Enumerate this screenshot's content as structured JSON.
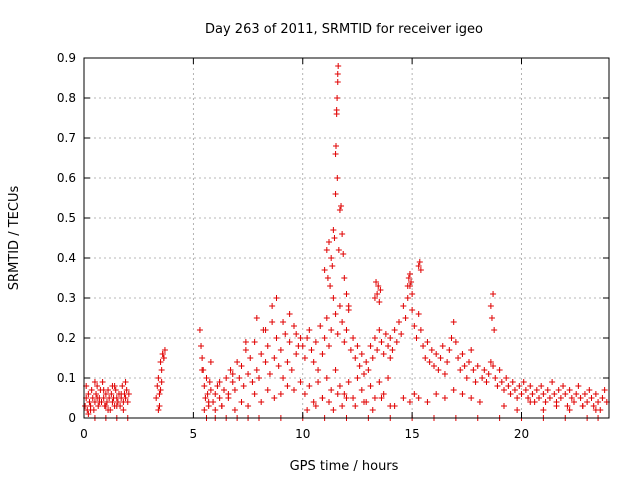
{
  "chart_data": {
    "type": "scatter",
    "title": "Day 263 of 2011, SRMTID for receiver igeo",
    "xlabel": "GPS time / hours",
    "ylabel": "SRMTID / TECUs",
    "xlim": [
      0,
      24
    ],
    "ylim": [
      0,
      0.9
    ],
    "xticks": [
      0,
      5,
      10,
      15,
      20
    ],
    "xtick_labels": [
      "0",
      "5",
      "10",
      "15",
      "20"
    ],
    "yticks": [
      0,
      0.1,
      0.2,
      0.3,
      0.4,
      0.5,
      0.6,
      0.7,
      0.8,
      0.9
    ],
    "ytick_labels": [
      "0",
      "0.1",
      "0.2",
      "0.3",
      "0.4",
      "0.5",
      "0.6",
      "0.7",
      "0.8",
      "0.9"
    ],
    "grid": true,
    "marker": "plus",
    "color": "#e00000",
    "series": [
      {
        "name": "SRMTID",
        "x": [
          0.05,
          0.1,
          0.15,
          0.2,
          0.25,
          0.3,
          0.35,
          0.4,
          0.45,
          0.5,
          0.55,
          0.6,
          0.65,
          0.7,
          0.75,
          0.8,
          0.85,
          0.9,
          0.95,
          1.0,
          1.05,
          1.1,
          1.15,
          1.2,
          1.25,
          1.3,
          1.35,
          1.4,
          1.45,
          1.5,
          1.55,
          1.6,
          1.65,
          1.7,
          1.75,
          1.8,
          1.85,
          1.9,
          1.95,
          2.0,
          2.05,
          0.1,
          0.3,
          0.5,
          0.7,
          0.9,
          1.1,
          1.3,
          1.5,
          1.7,
          1.9,
          0.2,
          0.6,
          1.0,
          1.4,
          1.8,
          3.3,
          3.35,
          3.4,
          3.45,
          3.5,
          3.55,
          3.6,
          3.65,
          3.7,
          3.4,
          3.5,
          3.6,
          3.55,
          3.65,
          3.45,
          5.3,
          5.35,
          5.4,
          5.45,
          5.5,
          5.55,
          5.6,
          5.65,
          5.7,
          5.75,
          5.8,
          5.9,
          6.0,
          6.1,
          6.2,
          6.3,
          6.4,
          6.5,
          6.6,
          6.7,
          6.8,
          6.9,
          7.0,
          7.1,
          7.2,
          7.3,
          7.4,
          7.5,
          7.6,
          7.7,
          7.8,
          7.9,
          8.0,
          8.1,
          8.2,
          8.3,
          8.4,
          8.5,
          8.6,
          8.7,
          8.8,
          8.9,
          9.0,
          9.1,
          9.2,
          9.3,
          9.4,
          9.5,
          9.6,
          9.7,
          9.8,
          9.9,
          5.5,
          5.7,
          6.0,
          6.3,
          6.6,
          6.9,
          7.2,
          7.5,
          7.8,
          8.1,
          8.4,
          8.7,
          9.0,
          9.3,
          9.6,
          9.9,
          5.4,
          5.8,
          6.2,
          6.8,
          7.4,
          7.9,
          8.3,
          8.6,
          8.8,
          9.1,
          9.4,
          9.7,
          10.0,
          10.1,
          10.2,
          10.3,
          10.4,
          10.5,
          10.6,
          10.7,
          10.8,
          10.9,
          11.0,
          11.1,
          11.2,
          11.3,
          11.4,
          11.5,
          11.6,
          11.7,
          11.8,
          11.9,
          12.0,
          12.1,
          12.2,
          12.3,
          12.4,
          12.5,
          12.6,
          12.7,
          12.8,
          12.9,
          13.0,
          13.1,
          13.2,
          13.3,
          13.4,
          13.5,
          13.6,
          13.7,
          13.8,
          13.9,
          14.0,
          10.1,
          10.3,
          10.5,
          10.7,
          10.9,
          11.1,
          11.3,
          11.5,
          11.7,
          11.9,
          12.1,
          12.3,
          12.5,
          12.7,
          12.9,
          13.1,
          13.3,
          13.5,
          13.7,
          13.9,
          10.2,
          10.6,
          10.9,
          11.2,
          11.4,
          11.6,
          11.8,
          12.0,
          12.4,
          12.8,
          13.2,
          13.6,
          14.0,
          11.0,
          11.1,
          11.15,
          11.2,
          11.25,
          11.3,
          11.35,
          11.4,
          11.45,
          11.5,
          11.5,
          11.52,
          11.55,
          11.57,
          11.6,
          11.6,
          11.62,
          11.55,
          11.58,
          11.65,
          11.7,
          11.75,
          11.8,
          11.85,
          11.9,
          12.0,
          12.1,
          13.3,
          13.35,
          13.4,
          13.45,
          13.5,
          13.55,
          14.0,
          14.1,
          14.2,
          14.3,
          14.4,
          14.5,
          14.6,
          14.7,
          14.8,
          14.9,
          15.0,
          15.1,
          15.2,
          15.3,
          15.4,
          15.5,
          15.6,
          15.7,
          15.8,
          15.9,
          16.0,
          16.1,
          16.2,
          16.3,
          16.4,
          16.5,
          16.6,
          16.7,
          16.8,
          16.9,
          17.0,
          17.1,
          17.2,
          17.3,
          17.4,
          17.5,
          17.6,
          17.7,
          17.8,
          17.9,
          18.0,
          14.2,
          14.6,
          14.9,
          15.1,
          15.3,
          15.7,
          16.1,
          16.5,
          16.9,
          17.3,
          17.7,
          18.1,
          14.8,
          14.85,
          14.9,
          14.95,
          15.0,
          15.3,
          15.35,
          15.4,
          18.2,
          18.3,
          18.4,
          18.5,
          18.6,
          18.7,
          18.8,
          18.9,
          19.0,
          19.1,
          19.2,
          19.3,
          19.4,
          19.5,
          19.6,
          19.7,
          19.8,
          19.9,
          20.0,
          20.1,
          20.2,
          20.3,
          20.4,
          20.5,
          20.6,
          20.7,
          20.8,
          20.9,
          21.0,
          21.1,
          21.2,
          21.3,
          21.4,
          21.5,
          21.6,
          21.7,
          21.8,
          21.9,
          22.0,
          22.1,
          22.2,
          22.3,
          22.4,
          22.5,
          22.6,
          22.7,
          22.8,
          22.9,
          23.0,
          23.1,
          23.2,
          23.3,
          23.4,
          23.5,
          23.6,
          23.7,
          23.8,
          23.9,
          18.6,
          18.7,
          18.65,
          18.75,
          19.2,
          19.8,
          20.4,
          21.0,
          21.6,
          22.2,
          22.8,
          23.4,
          0.5,
          1.0,
          1.5,
          2.0,
          5.6,
          6.0,
          6.5,
          7.0,
          7.5,
          8.0,
          9.0,
          10.0,
          11.0,
          12.0,
          13.0,
          14.0,
          15.0,
          16.0,
          17.0,
          18.0,
          19.0,
          20.0,
          21.0,
          22.0,
          23.0,
          23.5
        ],
        "y": [
          0.03,
          0.05,
          0.02,
          0.06,
          0.04,
          0.03,
          0.07,
          0.05,
          0.02,
          0.04,
          0.06,
          0.08,
          0.03,
          0.05,
          0.07,
          0.04,
          0.09,
          0.05,
          0.03,
          0.06,
          0.04,
          0.07,
          0.05,
          0.02,
          0.06,
          0.04,
          0.05,
          0.03,
          0.07,
          0.05,
          0.04,
          0.06,
          0.03,
          0.05,
          0.08,
          0.04,
          0.06,
          0.05,
          0.07,
          0.04,
          0.06,
          0.08,
          0.02,
          0.09,
          0.04,
          0.07,
          0.02,
          0.08,
          0.03,
          0.06,
          0.09,
          0.01,
          0.05,
          0.03,
          0.08,
          0.02,
          0.05,
          0.08,
          0.1,
          0.03,
          0.07,
          0.12,
          0.16,
          0.15,
          0.17,
          0.02,
          0.14,
          0.16,
          0.09,
          0.15,
          0.06,
          0.22,
          0.18,
          0.15,
          0.12,
          0.08,
          0.05,
          0.1,
          0.06,
          0.03,
          0.09,
          0.07,
          0.04,
          0.06,
          0.08,
          0.05,
          0.03,
          0.07,
          0.1,
          0.06,
          0.12,
          0.09,
          0.07,
          0.14,
          0.1,
          0.13,
          0.08,
          0.17,
          0.11,
          0.15,
          0.09,
          0.19,
          0.12,
          0.1,
          0.16,
          0.22,
          0.14,
          0.18,
          0.11,
          0.24,
          0.15,
          0.2,
          0.13,
          0.17,
          0.1,
          0.21,
          0.14,
          0.19,
          0.12,
          0.23,
          0.16,
          0.18,
          0.2,
          0.02,
          0.04,
          0.02,
          0.03,
          0.05,
          0.02,
          0.04,
          0.03,
          0.06,
          0.04,
          0.07,
          0.05,
          0.06,
          0.08,
          0.07,
          0.09,
          0.12,
          0.14,
          0.09,
          0.11,
          0.19,
          0.25,
          0.22,
          0.28,
          0.3,
          0.24,
          0.26,
          0.21,
          0.18,
          0.15,
          0.2,
          0.22,
          0.17,
          0.14,
          0.19,
          0.12,
          0.23,
          0.16,
          0.2,
          0.25,
          0.18,
          0.22,
          0.3,
          0.26,
          0.21,
          0.28,
          0.24,
          0.19,
          0.22,
          0.27,
          0.17,
          0.2,
          0.15,
          0.18,
          0.13,
          0.16,
          0.11,
          0.14,
          0.12,
          0.18,
          0.15,
          0.2,
          0.17,
          0.22,
          0.19,
          0.16,
          0.21,
          0.18,
          0.15,
          0.06,
          0.08,
          0.04,
          0.09,
          0.05,
          0.1,
          0.07,
          0.12,
          0.08,
          0.06,
          0.09,
          0.05,
          0.1,
          0.07,
          0.04,
          0.08,
          0.05,
          0.09,
          0.06,
          0.1,
          0.02,
          0.03,
          0.05,
          0.04,
          0.02,
          0.06,
          0.03,
          0.05,
          0.03,
          0.04,
          0.02,
          0.05,
          0.03,
          0.37,
          0.42,
          0.35,
          0.44,
          0.33,
          0.4,
          0.38,
          0.47,
          0.45,
          0.56,
          0.66,
          0.68,
          0.77,
          0.8,
          0.84,
          0.86,
          0.88,
          0.76,
          0.6,
          0.42,
          0.52,
          0.53,
          0.46,
          0.41,
          0.35,
          0.31,
          0.28,
          0.3,
          0.34,
          0.31,
          0.33,
          0.29,
          0.32,
          0.2,
          0.17,
          0.22,
          0.19,
          0.24,
          0.21,
          0.28,
          0.25,
          0.3,
          0.33,
          0.27,
          0.23,
          0.2,
          0.26,
          0.22,
          0.18,
          0.15,
          0.19,
          0.14,
          0.17,
          0.13,
          0.16,
          0.12,
          0.15,
          0.18,
          0.11,
          0.14,
          0.17,
          0.2,
          0.24,
          0.19,
          0.15,
          0.12,
          0.16,
          0.13,
          0.1,
          0.14,
          0.17,
          0.12,
          0.09,
          0.13,
          0.03,
          0.05,
          0.04,
          0.06,
          0.05,
          0.04,
          0.06,
          0.05,
          0.07,
          0.06,
          0.05,
          0.04,
          0.33,
          0.35,
          0.36,
          0.34,
          0.31,
          0.38,
          0.39,
          0.37,
          0.1,
          0.12,
          0.09,
          0.11,
          0.14,
          0.13,
          0.1,
          0.08,
          0.12,
          0.09,
          0.07,
          0.1,
          0.08,
          0.06,
          0.09,
          0.07,
          0.05,
          0.08,
          0.06,
          0.09,
          0.07,
          0.05,
          0.08,
          0.06,
          0.04,
          0.07,
          0.05,
          0.08,
          0.06,
          0.04,
          0.07,
          0.05,
          0.09,
          0.06,
          0.04,
          0.07,
          0.05,
          0.08,
          0.06,
          0.03,
          0.07,
          0.05,
          0.04,
          0.06,
          0.08,
          0.05,
          0.03,
          0.06,
          0.04,
          0.07,
          0.05,
          0.03,
          0.06,
          0.04,
          0.02,
          0.05,
          0.07,
          0.04,
          0.28,
          0.31,
          0.25,
          0.22,
          0.03,
          0.02,
          0.04,
          0.02,
          0.03,
          0.02,
          0.03,
          0.02,
          0.0,
          0.0,
          0.0,
          0.0,
          0.0,
          0.0,
          0.0,
          0.0,
          0.0,
          0.0,
          0.0,
          0.0,
          0.0,
          0.0,
          0.0,
          0.0,
          0.0,
          0.0,
          0.0,
          0.0,
          0.0,
          0.0,
          0.0,
          0.0,
          0.0,
          0.0
        ]
      }
    ]
  }
}
